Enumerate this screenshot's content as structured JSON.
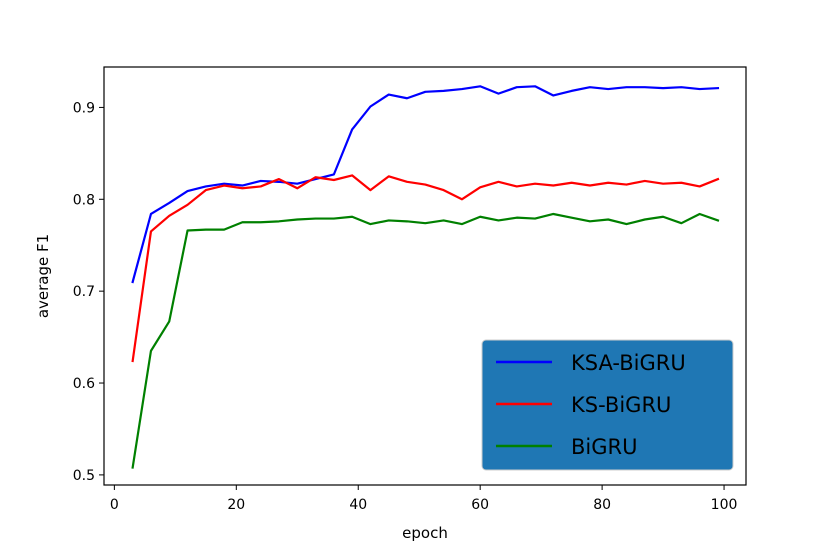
{
  "chart_data": {
    "type": "line",
    "xlabel": "epoch",
    "ylabel": "average F1",
    "xlim": [
      -1.7,
      103.6
    ],
    "ylim": [
      0.489,
      0.944
    ],
    "xticks": [
      0,
      20,
      40,
      60,
      80,
      100
    ],
    "yticks": [
      0.5,
      0.6,
      0.7,
      0.8,
      0.9
    ],
    "xtick_labels": [
      "0",
      "20",
      "40",
      "60",
      "80",
      "100"
    ],
    "ytick_labels": [
      "0.5",
      "0.6",
      "0.7",
      "0.8",
      "0.9"
    ],
    "grid": false,
    "legend_position": "bottom-right",
    "legend_background": "#1f77b4",
    "x": [
      3,
      6,
      9,
      12,
      15,
      18,
      21,
      24,
      27,
      30,
      33,
      36,
      39,
      42,
      45,
      48,
      51,
      54,
      57,
      60,
      63,
      66,
      69,
      72,
      75,
      78,
      81,
      84,
      87,
      90,
      93,
      96,
      99
    ],
    "series": [
      {
        "name": "KSA-BiGRU",
        "color": "#0000ff",
        "values": [
          0.71,
          0.784,
          0.796,
          0.809,
          0.814,
          0.817,
          0.815,
          0.82,
          0.819,
          0.817,
          0.822,
          0.827,
          0.876,
          0.901,
          0.914,
          0.91,
          0.917,
          0.918,
          0.92,
          0.923,
          0.915,
          0.922,
          0.923,
          0.913,
          0.918,
          0.922,
          0.92,
          0.922,
          0.922,
          0.921,
          0.922,
          0.92,
          0.921
        ]
      },
      {
        "name": "KS-BiGRU",
        "color": "#ff0000",
        "values": [
          0.624,
          0.765,
          0.782,
          0.794,
          0.81,
          0.815,
          0.812,
          0.814,
          0.822,
          0.812,
          0.824,
          0.821,
          0.826,
          0.81,
          0.825,
          0.819,
          0.816,
          0.81,
          0.8,
          0.813,
          0.819,
          0.814,
          0.817,
          0.815,
          0.818,
          0.815,
          0.818,
          0.816,
          0.82,
          0.817,
          0.818,
          0.814,
          0.822
        ]
      },
      {
        "name": "BiGRU",
        "color": "#008000",
        "values": [
          0.508,
          0.635,
          0.667,
          0.766,
          0.767,
          0.767,
          0.775,
          0.775,
          0.776,
          0.778,
          0.779,
          0.779,
          0.781,
          0.773,
          0.777,
          0.776,
          0.774,
          0.777,
          0.773,
          0.781,
          0.777,
          0.78,
          0.779,
          0.784,
          0.78,
          0.776,
          0.778,
          0.773,
          0.778,
          0.781,
          0.774,
          0.784,
          0.777
        ]
      }
    ]
  }
}
